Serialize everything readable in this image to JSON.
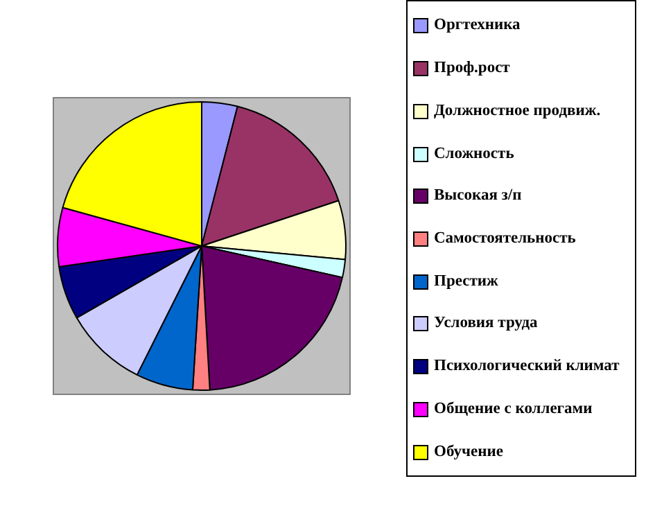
{
  "chart_data": {
    "type": "pie",
    "categories": [
      "Оргтехника",
      "Проф.рост",
      "Должностное продвиж.",
      "Сложность",
      "Высокая з/п",
      "Самостоятельность",
      "Престиж",
      "Условия труда",
      "Психологический климат",
      "Общение с коллегами",
      "Обучение"
    ],
    "values": [
      4.0,
      15.9,
      6.6,
      2.0,
      20.6,
      1.9,
      6.4,
      9.3,
      6.0,
      6.6,
      20.7
    ],
    "colors": [
      "#9999ff",
      "#993366",
      "#ffffcc",
      "#ccffff",
      "#660066",
      "#ff8080",
      "#0066cc",
      "#ccccff",
      "#000080",
      "#ff00ff",
      "#ffff00"
    ],
    "legend": "right"
  }
}
